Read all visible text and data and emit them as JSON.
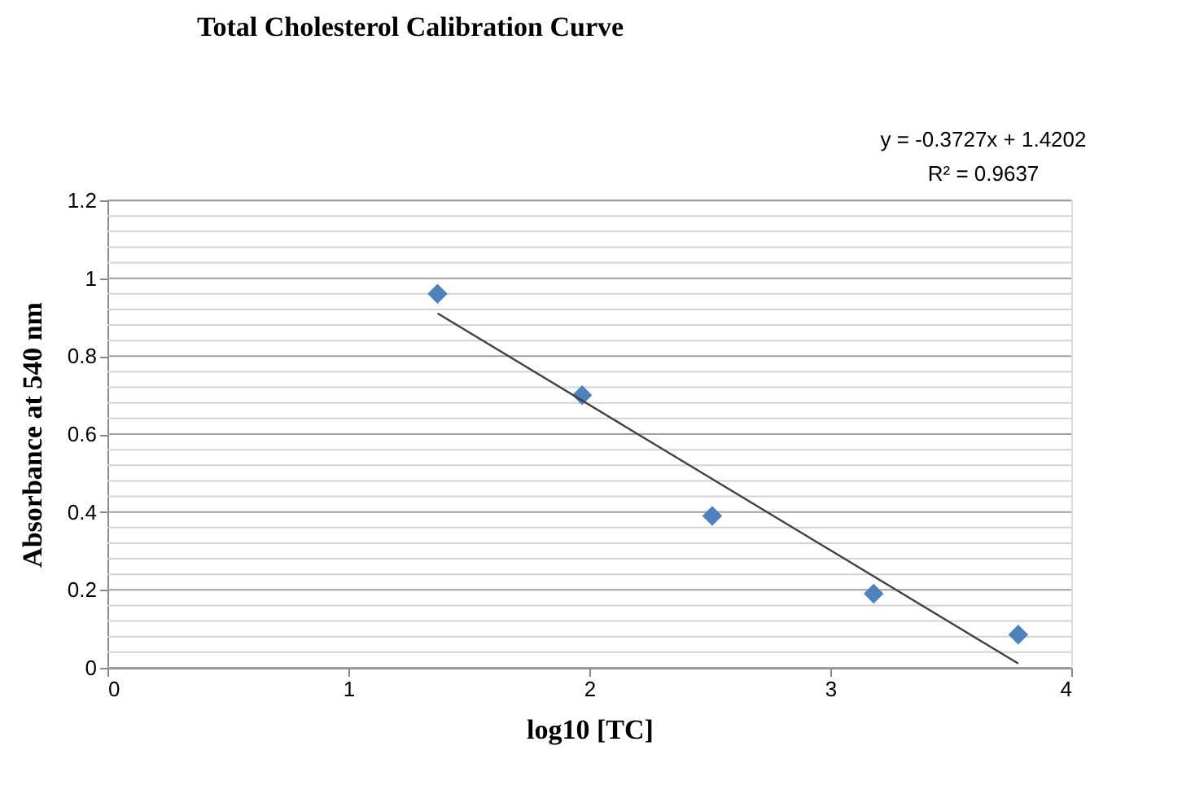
{
  "chart_data": {
    "type": "scatter",
    "title": "Total Cholesterol Calibration Curve",
    "xlabel": "log10 [TC]",
    "ylabel": "Absorbance at 540  nm",
    "series": [
      {
        "color": "#4f81bd",
        "marker": "diamond",
        "x": [
          1.37,
          1.97,
          2.51,
          3.18,
          3.78
        ],
        "values": [
          0.96,
          0.7,
          0.39,
          0.19,
          0.085
        ]
      },
      {
        "type": "line",
        "color": "#404040",
        "marker": "none",
        "x": [
          1.37,
          3.78
        ],
        "values": [
          0.91,
          0.011
        ]
      }
    ],
    "annotations": [
      "y = -0.3727x + 1.4202",
      "R² = 0.9637"
    ],
    "xlim": [
      0,
      4
    ],
    "xticks": [
      0,
      1,
      2,
      3,
      4
    ],
    "ylim": [
      0,
      1.2
    ],
    "yticks": [
      0,
      {
        "value": 0.04,
        "label": null
      },
      {
        "value": 0.08,
        "label": null
      },
      {
        "value": 0.12,
        "label": null
      },
      {
        "value": 0.16,
        "label": null
      },
      0.2,
      {
        "value": 0.24,
        "label": null
      },
      {
        "value": 0.28,
        "label": null
      },
      {
        "value": 0.32,
        "label": null
      },
      {
        "value": 0.36,
        "label": null
      },
      0.4,
      {
        "value": 0.44,
        "label": null
      },
      {
        "value": 0.48,
        "label": null
      },
      {
        "value": 0.52,
        "label": null
      },
      {
        "value": 0.56,
        "label": null
      },
      0.6,
      {
        "value": 0.64,
        "label": null
      },
      {
        "value": 0.68,
        "label": null
      },
      {
        "value": 0.72,
        "label": null
      },
      {
        "value": 0.76,
        "label": null
      },
      0.8,
      {
        "value": 0.84,
        "label": null
      },
      {
        "value": 0.88,
        "label": null
      },
      {
        "value": 0.92,
        "label": null
      },
      {
        "value": 0.96,
        "label": null
      },
      1,
      {
        "value": 1.04,
        "label": null
      },
      {
        "value": 1.08,
        "label": null
      },
      {
        "value": 1.12,
        "label": null
      },
      {
        "value": 1.16,
        "label": null
      },
      1.2
    ],
    "grid": "y"
  }
}
